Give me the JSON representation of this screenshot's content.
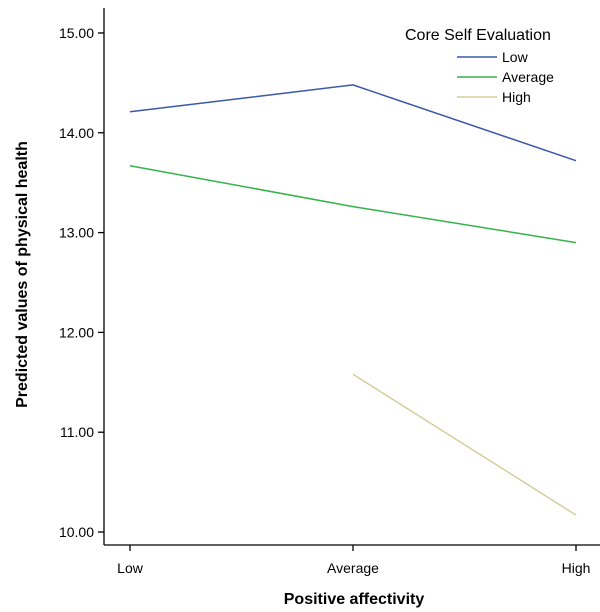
{
  "chart_data": {
    "type": "line",
    "xlabel": "Positive affectivity",
    "ylabel": "Predicted values of physical health",
    "categories": [
      "Low",
      "Average",
      "High"
    ],
    "yticks": [
      "10.00",
      "11.00",
      "12.00",
      "13.00",
      "14.00",
      "15.00"
    ],
    "ylim": [
      9.87,
      15.25
    ],
    "grid": false,
    "legend": {
      "title": "Core Self Evaluation",
      "placement": "top-right"
    },
    "series": [
      {
        "name": "Low",
        "color": "#3b58a8",
        "values": [
          14.21,
          14.48,
          13.72
        ]
      },
      {
        "name": "Average",
        "color": "#35b24a",
        "values": [
          13.67,
          13.26,
          12.9
        ]
      },
      {
        "name": "High",
        "color": "#d2cf9a",
        "values": [
          null,
          11.58,
          10.17
        ]
      }
    ]
  }
}
